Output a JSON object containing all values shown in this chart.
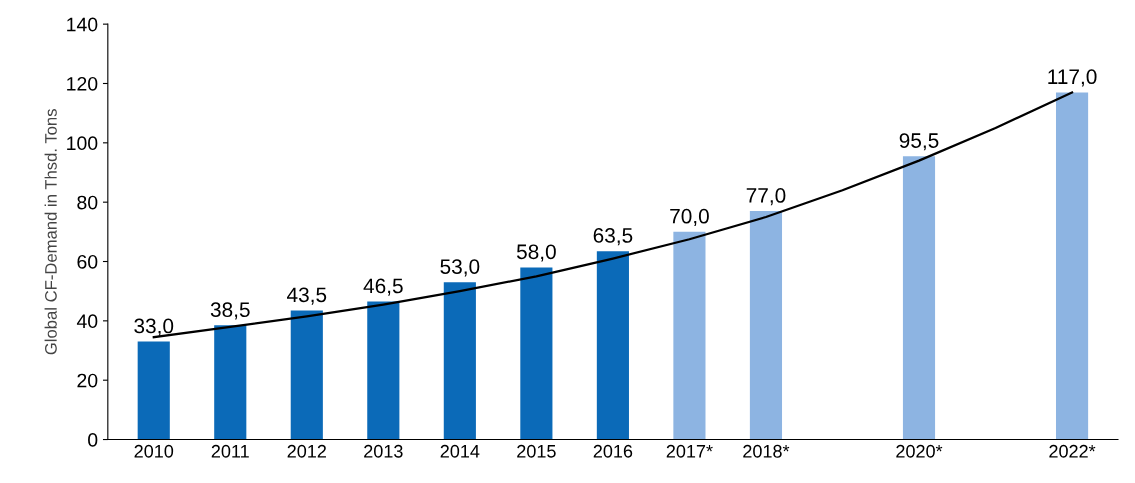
{
  "chart_data": {
    "type": "bar",
    "ylabel": "Global CF-Demand in Thsd. Tons",
    "categories": [
      "2010",
      "2011",
      "2012",
      "2013",
      "2014",
      "2015",
      "2016",
      "2017*",
      "2018*",
      null,
      "2020*",
      null,
      "2022*"
    ],
    "series": [
      {
        "values": [
          33.0,
          38.5,
          43.5,
          46.5,
          53.0,
          58.0,
          63.5,
          70.0,
          77.0,
          null,
          95.5,
          null,
          117.0
        ],
        "colors": [
          "#0b6ab8",
          "#0b6ab8",
          "#0b6ab8",
          "#0b6ab8",
          "#0b6ab8",
          "#0b6ab8",
          "#0b6ab8",
          "#8db4e2",
          "#8db4e2",
          "#8db4e2",
          "#8db4e2",
          "#8db4e2",
          "#8db4e2"
        ],
        "value_labels": [
          "33,0",
          "38,5",
          "43,5",
          "46,5",
          "53,0",
          "58,0",
          "63,5",
          "70,0",
          "77,0",
          null,
          "95,5",
          null,
          "117,0"
        ]
      },
      {
        "type": "line",
        "color": "#000000",
        "values": [
          34.5,
          38,
          41.5,
          45.5,
          50,
          55,
          61,
          67.5,
          75,
          84,
          94,
          105,
          117
        ]
      }
    ],
    "ylim": [
      0,
      140
    ],
    "yticks": [
      0,
      20,
      40,
      60,
      80,
      100,
      120,
      140
    ],
    "grid": false,
    "legend": false
  }
}
